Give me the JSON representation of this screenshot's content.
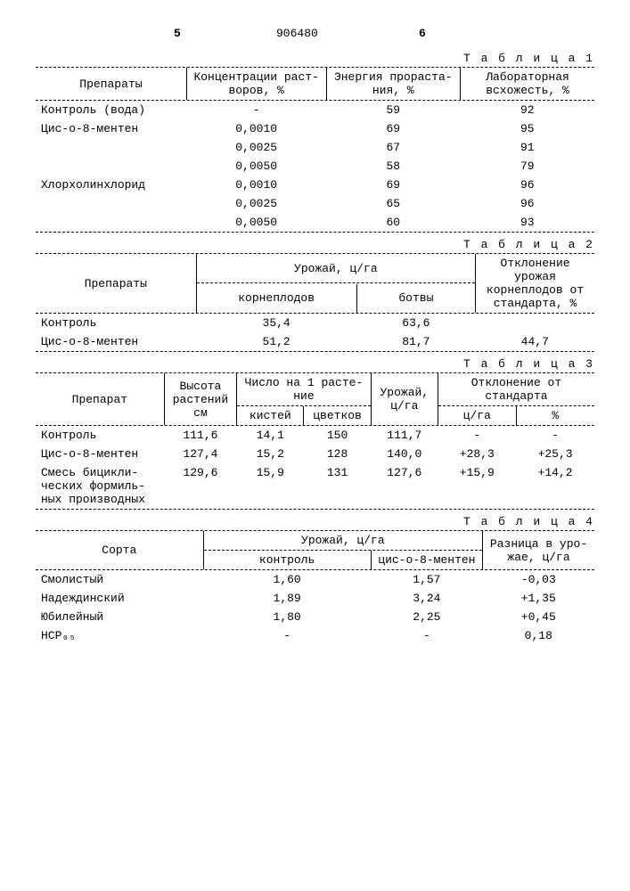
{
  "header": {
    "n5": "5",
    "docnum": "906480",
    "n6": "6"
  },
  "labels": {
    "t1": "Т а б л и ц а  1",
    "t2": "Т а б л и ц а  2",
    "t3": "Т а б л и ц а  3",
    "t4": "Т а б л и ц а  4"
  },
  "t1": {
    "h": [
      "Препараты",
      "Концентрации раст-\nворов, %",
      "Энергия прораста-\nния, %",
      "Лабораторная\nвсхожесть, %"
    ],
    "rows": [
      [
        "Контроль (вода)",
        "-",
        "59",
        "92"
      ],
      [
        "Цис-о-8-ментен",
        "0,0010",
        "69",
        "95"
      ],
      [
        "",
        "0,0025",
        "67",
        "91"
      ],
      [
        "",
        "0,0050",
        "58",
        "79"
      ],
      [
        "Хлорхолинхлорид",
        "0,0010",
        "69",
        "96"
      ],
      [
        "",
        "0,0025",
        "65",
        "96"
      ],
      [
        "",
        "0,0050",
        "60",
        "93"
      ]
    ]
  },
  "t2": {
    "h1": [
      "Препараты",
      "Урожай, ц/га",
      "Отклонение урожая\nкорнеплодов от\nстандарта, %"
    ],
    "h2": [
      "корнеплодов",
      "ботвы"
    ],
    "rows": [
      [
        "Контроль",
        "35,4",
        "63,6",
        ""
      ],
      [
        "Цис-о-8-ментен",
        "51,2",
        "81,7",
        "44,7"
      ]
    ]
  },
  "t3": {
    "h1": [
      "Препарат",
      "Высота\nрастений\nсм",
      "Число на 1 расте-\nние",
      "Урожай,\nц/га",
      "Отклонение от\nстандарта"
    ],
    "h2": [
      "кистей",
      "цветков",
      "ц/га",
      "%"
    ],
    "rows": [
      [
        "Контроль",
        "111,6",
        "14,1",
        "150",
        "111,7",
        "-",
        "-"
      ],
      [
        "Цис-о-8-ментен",
        "127,4",
        "15,2",
        "128",
        "140,0",
        "+28,3",
        "+25,3"
      ],
      [
        "Смесь бицикли-\nческих формиль-\nных производных",
        "129,6",
        "15,9",
        "131",
        "127,6",
        "+15,9",
        "+14,2"
      ]
    ]
  },
  "t4": {
    "h1": [
      "Сорта",
      "Урожай, ц/га",
      "Разница в уро-\nжае, ц/га"
    ],
    "h2": [
      "контроль",
      "цис-о-8-ментен"
    ],
    "rows": [
      [
        "Смолистый",
        "1,60",
        "1,57",
        "-0,03"
      ],
      [
        "Надеждинский",
        "1,89",
        "3,24",
        "+1,35"
      ],
      [
        "Юбилейный",
        "1,80",
        "2,25",
        "+0,45"
      ],
      [
        "НСР₀₅",
        "-",
        "-",
        "0,18"
      ]
    ]
  }
}
